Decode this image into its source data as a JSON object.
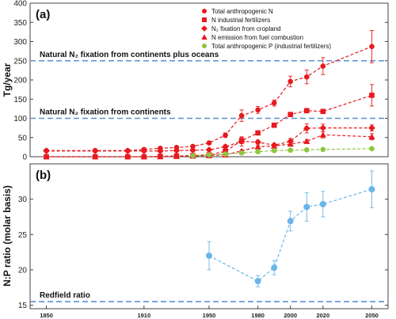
{
  "chart_data": [
    {
      "type": "line",
      "panel_label": "(a)",
      "ylabel": "Tg/year",
      "ylim": [
        0,
        400
      ],
      "yticks": [
        0,
        50,
        100,
        150,
        200,
        250,
        300,
        350,
        400
      ],
      "xlim": [
        1840,
        2060
      ],
      "reference_lines": [
        {
          "y": 250,
          "label": "Natural N₂ fixation from continents plus oceans",
          "color": "#5b8fd6"
        },
        {
          "y": 100,
          "label": "Natural N₂ fixation from continents",
          "color": "#5b8fd6"
        }
      ],
      "legend_position": "top-right",
      "series": [
        {
          "name": "Total anthropogenic N",
          "marker": "circle",
          "color": "#e8191f",
          "x": [
            1850,
            1880,
            1900,
            1910,
            1920,
            1930,
            1940,
            1950,
            1960,
            1970,
            1980,
            1990,
            2000,
            2010,
            2020,
            2050
          ],
          "y": [
            16,
            16,
            16,
            19,
            22,
            24,
            27,
            36,
            56,
            107,
            122,
            140,
            196,
            208,
            236,
            287
          ],
          "err": [
            0,
            0,
            0,
            3,
            3,
            3,
            4,
            4,
            6,
            15,
            9,
            8,
            14,
            18,
            22,
            42
          ]
        },
        {
          "name": "N industrial fertilizers",
          "marker": "square",
          "color": "#e8191f",
          "x": [
            1850,
            1880,
            1900,
            1910,
            1920,
            1930,
            1940,
            1950,
            1960,
            1970,
            1980,
            1990,
            2000,
            2010,
            2020,
            2050
          ],
          "y": [
            0,
            0,
            0,
            0,
            1,
            2,
            3,
            5,
            14,
            42,
            62,
            82,
            110,
            120,
            118,
            160
          ],
          "err": [
            0,
            0,
            0,
            0,
            0,
            0,
            0,
            1,
            3,
            8,
            5,
            4,
            5,
            5,
            5,
            28
          ]
        },
        {
          "name": "N₂ fixation from cropland",
          "marker": "diamond",
          "color": "#e8191f",
          "x": [
            1850,
            1880,
            1900,
            1910,
            1920,
            1930,
            1940,
            1950,
            1960,
            1970,
            1980,
            1990,
            2000,
            2010,
            2020,
            2050
          ],
          "y": [
            15,
            15,
            15,
            15,
            15,
            16,
            17,
            18,
            26,
            40,
            38,
            30,
            40,
            74,
            75,
            75
          ],
          "err": [
            0,
            0,
            0,
            0,
            0,
            0,
            0,
            1,
            5,
            12,
            5,
            5,
            8,
            12,
            10,
            8
          ]
        },
        {
          "name": "N emission from fuel combustion",
          "marker": "triangle",
          "color": "#e8191f",
          "x": [
            1850,
            1880,
            1900,
            1910,
            1920,
            1930,
            1940,
            1950,
            1960,
            1970,
            1980,
            1990,
            2000,
            2010,
            2020,
            2050
          ],
          "y": [
            0,
            0,
            0,
            0,
            0,
            1,
            2,
            3,
            5,
            15,
            26,
            28,
            33,
            40,
            57,
            52
          ],
          "err": [
            0,
            0,
            0,
            0,
            0,
            0,
            0,
            0,
            1,
            3,
            3,
            3,
            4,
            5,
            8,
            8
          ]
        },
        {
          "name": "Total anthropogenic P (industrial fertilizers)",
          "marker": "circle",
          "color": "#8cc63f",
          "x": [
            1940,
            1950,
            1960,
            1970,
            1980,
            1990,
            2000,
            2010,
            2020,
            2050
          ],
          "y": [
            3,
            5,
            7,
            10,
            13,
            16,
            17,
            18,
            19,
            21
          ],
          "err": [
            0,
            0,
            0,
            0,
            1,
            1,
            1,
            1,
            2,
            2
          ]
        }
      ]
    },
    {
      "type": "line",
      "panel_label": "(b)",
      "ylabel": "N:P ratio (molar basis)",
      "ylim": [
        14.5,
        35
      ],
      "yticks": [
        15,
        20,
        25,
        30
      ],
      "xlim": [
        1840,
        2060
      ],
      "xticks": [
        1850,
        1910,
        1950,
        1980,
        2000,
        2020,
        2050
      ],
      "reference_lines": [
        {
          "y": 15.5,
          "label": "Redfield ratio",
          "color": "#5b8fd6"
        }
      ],
      "series": [
        {
          "name": "",
          "marker": "circle",
          "color": "#6ab4e8",
          "x": [
            1950,
            1980,
            1990,
            2000,
            2010,
            2020,
            2050
          ],
          "y": [
            22,
            18.4,
            20.3,
            26.9,
            28.9,
            29.3,
            31.4
          ],
          "err": [
            2,
            0.8,
            1,
            1.4,
            2,
            1.8,
            2.6
          ]
        }
      ]
    }
  ]
}
